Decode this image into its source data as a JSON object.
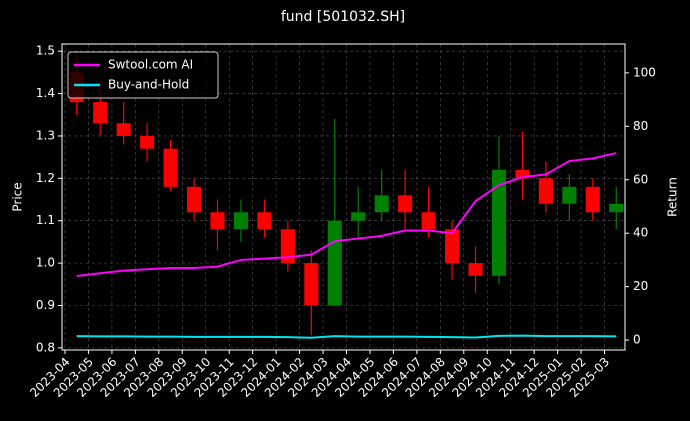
{
  "chart_data": {
    "type": "candlestick",
    "title": "fund [501032.SH]",
    "ylabel": "Price",
    "y2label": "Return",
    "categories": [
      "2023-04",
      "2023-05",
      "2023-06",
      "2023-07",
      "2023-08",
      "2023-09",
      "2023-10",
      "2023-11",
      "2023-12",
      "2024-01",
      "2024-02",
      "2024-03",
      "2024-04",
      "2024-05",
      "2024-06",
      "2024-07",
      "2024-08",
      "2024-09",
      "2024-10",
      "2024-11",
      "2024-12",
      "2025-01",
      "2025-02",
      "2025-03"
    ],
    "open": [
      1.45,
      1.38,
      1.33,
      1.3,
      1.27,
      1.18,
      1.12,
      1.08,
      1.12,
      1.08,
      1.0,
      0.9,
      1.1,
      1.12,
      1.16,
      1.12,
      1.08,
      1.0,
      0.97,
      1.22,
      1.2,
      1.14,
      1.18,
      1.12
    ],
    "high": [
      1.5,
      1.42,
      1.38,
      1.33,
      1.29,
      1.2,
      1.15,
      1.15,
      1.15,
      1.1,
      1.03,
      1.34,
      1.18,
      1.22,
      1.22,
      1.18,
      1.1,
      1.04,
      1.3,
      1.31,
      1.24,
      1.21,
      1.2,
      1.18
    ],
    "low": [
      1.35,
      1.3,
      1.28,
      1.24,
      1.17,
      1.1,
      1.03,
      1.05,
      1.06,
      0.98,
      0.83,
      0.9,
      1.06,
      1.1,
      1.08,
      1.06,
      0.96,
      0.93,
      0.95,
      1.15,
      1.12,
      1.1,
      1.1,
      1.08
    ],
    "close": [
      1.38,
      1.33,
      1.3,
      1.27,
      1.18,
      1.12,
      1.08,
      1.12,
      1.08,
      1.0,
      0.9,
      1.1,
      1.12,
      1.16,
      1.12,
      1.08,
      1.0,
      0.97,
      1.22,
      1.2,
      1.14,
      1.18,
      1.12,
      1.14
    ],
    "up_color": "#008000",
    "down_color": "#ff0000",
    "series": [
      {
        "name": "Swtool.com AI",
        "color": "#ff00ff",
        "axis": "y2",
        "values": [
          24,
          25,
          26,
          26.5,
          27,
          27,
          27.5,
          30,
          30.5,
          31,
          32,
          37,
          38,
          39,
          41,
          41,
          40,
          52,
          58,
          61,
          62,
          67,
          68,
          70
        ]
      },
      {
        "name": "Buy-and-Hold",
        "color": "#00e5ee",
        "axis": "y2",
        "values": [
          1.5,
          1.4,
          1.4,
          1.3,
          1.3,
          1.2,
          1.2,
          1.2,
          1.2,
          1.1,
          0.9,
          1.5,
          1.3,
          1.3,
          1.3,
          1.2,
          1.1,
          1.0,
          1.6,
          1.7,
          1.5,
          1.5,
          1.5,
          1.4
        ]
      }
    ],
    "ylim": [
      0.795,
      1.517
    ],
    "yticks": [
      0.8,
      0.9,
      {
        "value": 1,
        "label": "1.0"
      },
      1.1,
      1.2,
      1.3,
      1.4,
      1.5
    ],
    "y2lim": [
      -3.7,
      110.8
    ],
    "y2ticks": [
      0,
      20,
      40,
      60,
      80,
      100
    ],
    "grid": true,
    "legend": "upper-left"
  }
}
